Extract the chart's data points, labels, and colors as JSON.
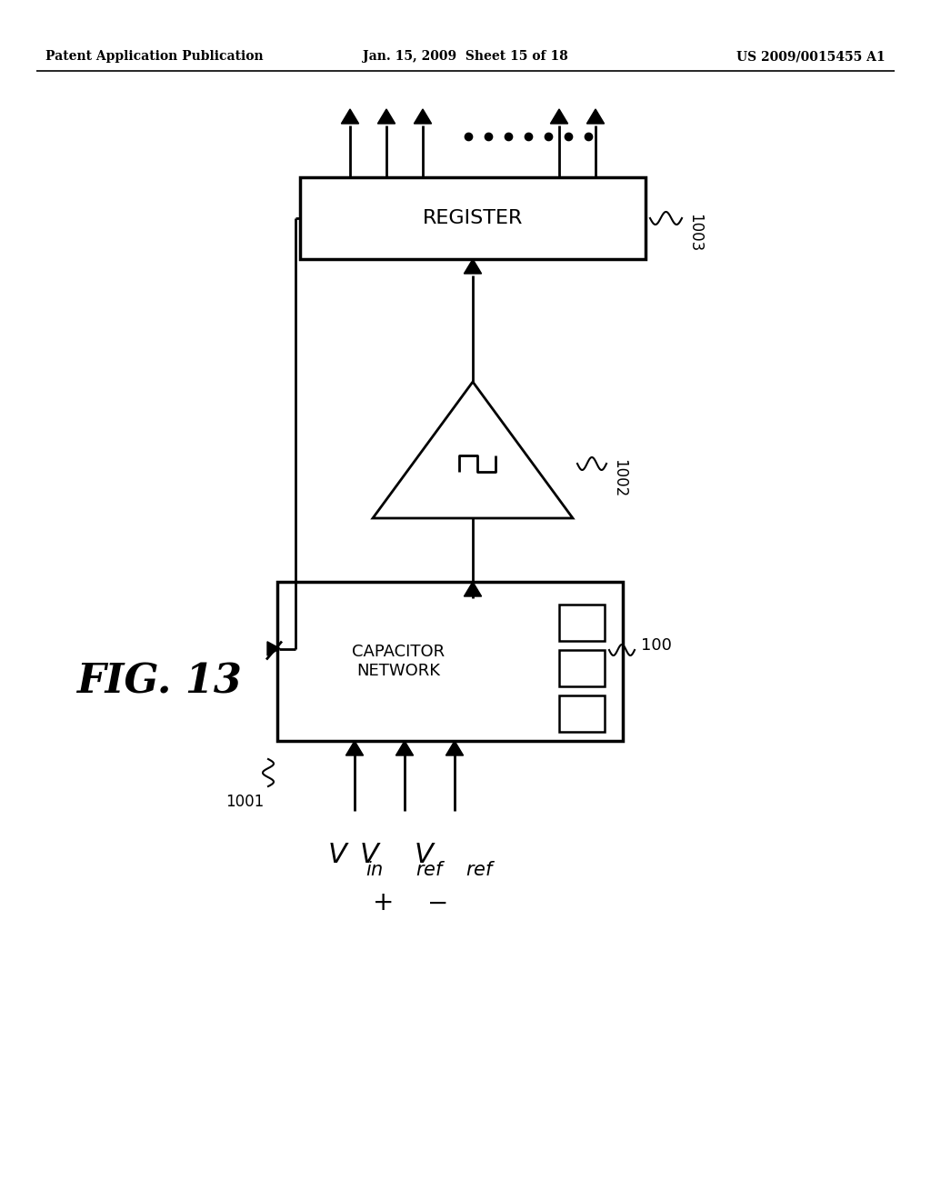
{
  "bg_color": "#ffffff",
  "header_left": "Patent Application Publication",
  "header_mid": "Jan. 15, 2009  Sheet 15 of 18",
  "header_right": "US 2009/0015455 A1",
  "fig_label": "FIG. 13",
  "register_label": "REGISTER",
  "register_ref": "1003",
  "comparator_ref": "1002",
  "cap_net_label": "CAPACITOR\nNETWORK",
  "cap_net_ref": "1001",
  "switch_ref": "100"
}
